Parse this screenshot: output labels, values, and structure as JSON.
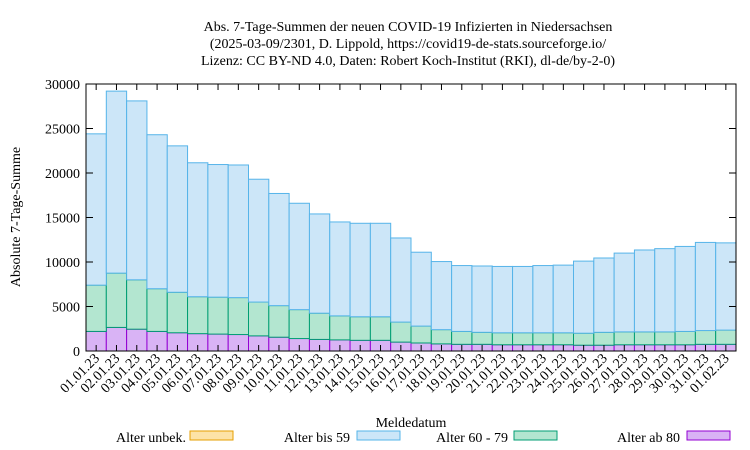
{
  "title_lines": [
    "Abs. 7-Tage-Summen der neuen COVID-19 Infizierten in Niedersachsen",
    "(2025-03-09/2301, D. Lippold, https://covid19-de-stats.sourceforge.io/",
    "Lizenz: CC BY-ND 4.0, Daten: Robert Koch-Institut (RKI), dl-de/by-2-0)"
  ],
  "chart_data": {
    "type": "bar",
    "stacked": true,
    "xlabel": "Meldedatum",
    "ylabel": "Absolute 7-Tage-Summe",
    "ylim": [
      0,
      30000
    ],
    "yticks": [
      0,
      5000,
      10000,
      15000,
      20000,
      25000,
      30000
    ],
    "grid": false,
    "legend_position": "bottom",
    "categories": [
      "01.01.23",
      "02.01.23",
      "03.01.23",
      "04.01.23",
      "05.01.23",
      "06.01.23",
      "07.01.23",
      "08.01.23",
      "09.01.23",
      "10.01.23",
      "11.01.23",
      "12.01.23",
      "13.01.23",
      "14.01.23",
      "15.01.23",
      "16.01.23",
      "17.01.23",
      "18.01.23",
      "19.01.23",
      "20.01.23",
      "21.01.23",
      "22.01.23",
      "23.01.23",
      "24.01.23",
      "25.01.23",
      "26.01.23",
      "27.01.23",
      "28.01.23",
      "29.01.23",
      "30.01.23",
      "31.01.23",
      "01.02.23"
    ],
    "series": [
      {
        "name": "Alter ab 80",
        "color": "#d9b3f5",
        "edge": "#9400d3",
        "values": [
          2200,
          2650,
          2450,
          2200,
          2050,
          1950,
          1900,
          1850,
          1700,
          1550,
          1400,
          1300,
          1250,
          1200,
          1200,
          1000,
          900,
          800,
          750,
          750,
          700,
          700,
          700,
          700,
          650,
          650,
          700,
          700,
          700,
          700,
          750,
          750
        ]
      },
      {
        "name": "Alter 60 - 79",
        "color": "#b3e6d0",
        "edge": "#009e73",
        "values": [
          5200,
          6100,
          5550,
          4800,
          4550,
          4150,
          4150,
          4150,
          3800,
          3550,
          3250,
          2950,
          2700,
          2650,
          2650,
          2250,
          1900,
          1600,
          1450,
          1350,
          1350,
          1350,
          1350,
          1350,
          1350,
          1450,
          1450,
          1450,
          1450,
          1500,
          1550,
          1600
        ]
      },
      {
        "name": "Alter bis 59",
        "color": "#cce6f8",
        "edge": "#56b4e9",
        "values": [
          17000,
          20450,
          20100,
          17300,
          16450,
          15050,
          14900,
          14900,
          13800,
          12600,
          11950,
          11150,
          10550,
          10500,
          10500,
          9450,
          8300,
          7650,
          7400,
          7450,
          7450,
          7450,
          7550,
          7600,
          8100,
          8350,
          8850,
          9200,
          9350,
          9550,
          9900,
          9800
        ]
      },
      {
        "name": "Alter unbek.",
        "color": "#fde3a7",
        "edge": "#e69f00",
        "values": [
          0,
          0,
          0,
          0,
          0,
          0,
          0,
          0,
          0,
          0,
          0,
          0,
          0,
          0,
          0,
          0,
          0,
          0,
          0,
          0,
          0,
          0,
          0,
          0,
          0,
          0,
          0,
          0,
          0,
          0,
          0,
          0
        ]
      }
    ]
  }
}
